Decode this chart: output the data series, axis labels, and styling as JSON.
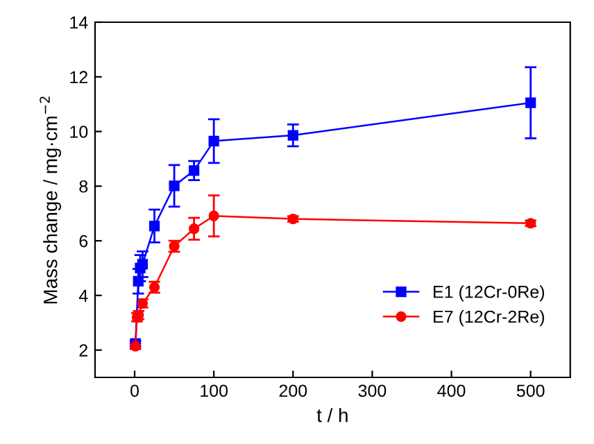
{
  "chart_data": {
    "type": "line",
    "xlabel": "t / h",
    "ylabel": "Mass change / mg·cm$^{−2}$",
    "xlim": [
      -50,
      550
    ],
    "xticks": [
      0,
      100,
      200,
      300,
      400,
      500
    ],
    "ylim": [
      1,
      14
    ],
    "yticks": [
      2,
      4,
      6,
      8,
      10,
      12,
      14
    ],
    "grid": false,
    "legend": "bottom right",
    "line_style": "solid",
    "series": [
      {
        "name": "E1 (12Cr-0Re)",
        "color": "#0000ff",
        "marker": "square",
        "x": [
          1,
          4.6,
          7,
          10,
          25,
          50,
          75,
          100,
          200,
          500
        ],
        "values": [
          2.24,
          4.52,
          5.0,
          5.14,
          6.54,
          8.01,
          8.57,
          9.65,
          9.86,
          11.05
        ],
        "errors": [
          0.1,
          0.45,
          0.48,
          0.47,
          0.6,
          0.76,
          0.35,
          0.8,
          0.4,
          1.3
        ]
      },
      {
        "name": "E7 (12Cr-2Re)",
        "color": "#ff0000",
        "marker": "circle",
        "x": [
          1,
          3,
          5,
          10,
          25,
          50,
          75,
          100,
          200,
          500
        ],
        "values": [
          2.14,
          3.2,
          3.28,
          3.71,
          4.3,
          5.8,
          6.44,
          6.91,
          6.8,
          6.64
        ],
        "errors": [
          0.1,
          0.15,
          0.15,
          0.15,
          0.2,
          0.2,
          0.4,
          0.75,
          0.1,
          0.1
        ]
      }
    ]
  }
}
